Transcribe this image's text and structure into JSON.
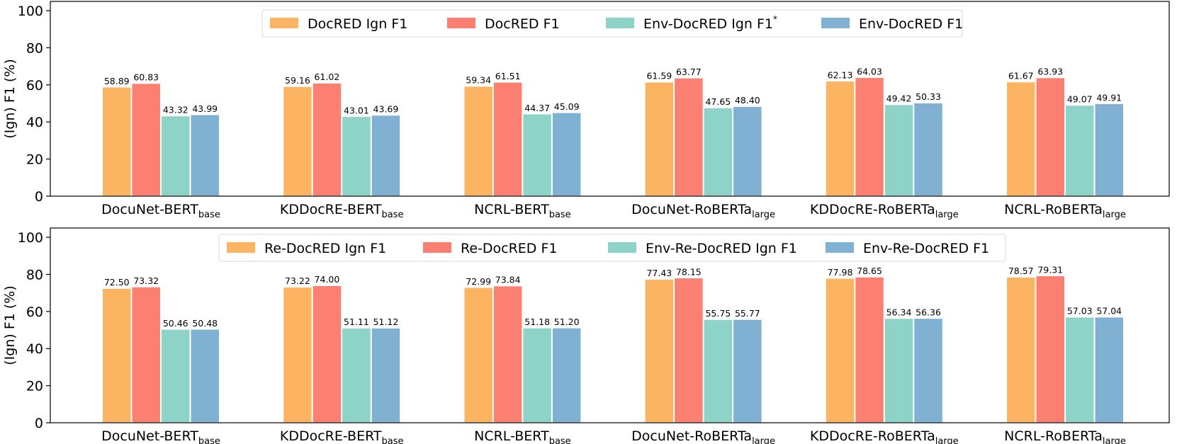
{
  "chart_data": [
    {
      "type": "bar",
      "ylabel": "(Ign) F1 (%)",
      "ylim": [
        0,
        105
      ],
      "yticks": [
        0,
        20,
        40,
        60,
        80,
        100
      ],
      "legend_position": "top-center",
      "grid": false,
      "categories": [
        {
          "main": "DocuNet-BERT",
          "sub": "base"
        },
        {
          "main": "KDDocRE-BERT",
          "sub": "base"
        },
        {
          "main": "NCRL-BERT",
          "sub": "base"
        },
        {
          "main": "DocuNet-RoBERTa",
          "sub": "large"
        },
        {
          "main": "KDDocRE-RoBERTa",
          "sub": "large"
        },
        {
          "main": "NCRL-RoBERTa",
          "sub": "large"
        }
      ],
      "series": [
        {
          "name": "DocRED Ign F1",
          "sup": "",
          "color": "#fdb462",
          "values": [
            58.89,
            59.16,
            59.34,
            61.59,
            62.13,
            61.67
          ],
          "labels": [
            "58.89",
            "59.16",
            "59.34",
            "61.59",
            "62.13",
            "61.67"
          ]
        },
        {
          "name": "DocRED F1",
          "sup": "",
          "color": "#fb8072",
          "values": [
            60.83,
            61.02,
            61.51,
            63.77,
            64.03,
            63.93
          ],
          "labels": [
            "60.83",
            "61.02",
            "61.51",
            "63.77",
            "64.03",
            "63.93"
          ]
        },
        {
          "name": "Env-DocRED Ign F1",
          "sup": "*",
          "color": "#8dd3c7",
          "values": [
            43.32,
            43.01,
            44.37,
            47.65,
            49.42,
            49.07
          ],
          "labels": [
            "43.32",
            "43.01",
            "44.37",
            "47.65",
            "49.42",
            "49.07"
          ]
        },
        {
          "name": "Env-DocRED F1",
          "sup": "",
          "color": "#80b1d3",
          "values": [
            43.99,
            43.69,
            45.09,
            48.4,
            50.33,
            49.91
          ],
          "labels": [
            "43.99",
            "43.69",
            "45.09",
            "48.40",
            "50.33",
            "49.91"
          ]
        }
      ]
    },
    {
      "type": "bar",
      "ylabel": "(Ign) F1 (%)",
      "ylim": [
        0,
        105
      ],
      "yticks": [
        0,
        20,
        40,
        60,
        80,
        100
      ],
      "legend_position": "top-center",
      "grid": false,
      "categories": [
        {
          "main": "DocuNet-BERT",
          "sub": "base"
        },
        {
          "main": "KDDocRE-BERT",
          "sub": "base"
        },
        {
          "main": "NCRL-BERT",
          "sub": "base"
        },
        {
          "main": "DocuNet-RoBERTa",
          "sub": "large"
        },
        {
          "main": "KDDocRE-RoBERTa",
          "sub": "large"
        },
        {
          "main": "NCRL-RoBERTa",
          "sub": "large"
        }
      ],
      "series": [
        {
          "name": "Re-DocRED Ign F1",
          "sup": "",
          "color": "#fdb462",
          "values": [
            72.5,
            73.22,
            72.99,
            77.43,
            77.98,
            78.57
          ],
          "labels": [
            "72.50",
            "73.22",
            "72.99",
            "77.43",
            "77.98",
            "78.57"
          ]
        },
        {
          "name": "Re-DocRED F1",
          "sup": "",
          "color": "#fb8072",
          "values": [
            73.32,
            74.0,
            73.84,
            78.15,
            78.65,
            79.31
          ],
          "labels": [
            "73.32",
            "74.00",
            "73.84",
            "78.15",
            "78.65",
            "79.31"
          ]
        },
        {
          "name": "Env-Re-DocRED Ign F1",
          "sup": "",
          "color": "#8dd3c7",
          "values": [
            50.46,
            51.11,
            51.18,
            55.75,
            56.34,
            57.03
          ],
          "labels": [
            "50.46",
            "51.11",
            "51.18",
            "55.75",
            "56.34",
            "57.03"
          ]
        },
        {
          "name": "Env-Re-DocRED F1",
          "sup": "",
          "color": "#80b1d3",
          "values": [
            50.48,
            51.12,
            51.2,
            55.77,
            56.36,
            57.04
          ],
          "labels": [
            "50.48",
            "51.12",
            "51.20",
            "55.77",
            "56.36",
            "57.04"
          ]
        }
      ]
    }
  ]
}
